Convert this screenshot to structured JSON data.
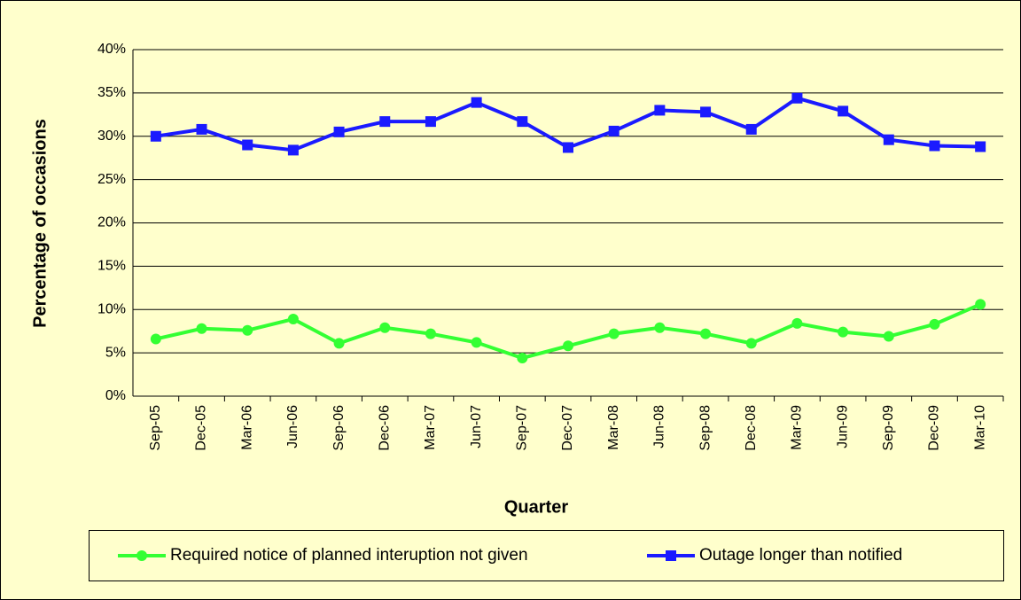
{
  "chart_data": {
    "type": "line",
    "y_label": "Percentage of occasions",
    "x_label": "Quarter",
    "categories": [
      "Sep-05",
      "Dec-05",
      "Mar-06",
      "Jun-06",
      "Sep-06",
      "Dec-06",
      "Mar-07",
      "Jun-07",
      "Sep-07",
      "Dec-07",
      "Mar-08",
      "Jun-08",
      "Sep-08",
      "Dec-08",
      "Mar-09",
      "Jun-09",
      "Sep-09",
      "Dec-09",
      "Mar-10"
    ],
    "series": [
      {
        "name": "Required notice of planned interuption not given",
        "color": "#33ff33",
        "marker": "circle",
        "values": [
          6.6,
          7.8,
          7.6,
          8.9,
          6.1,
          7.9,
          7.2,
          6.2,
          4.4,
          5.8,
          7.2,
          7.9,
          7.2,
          6.1,
          8.4,
          7.4,
          6.9,
          8.3,
          10.6
        ]
      },
      {
        "name": "Outage longer than notified",
        "color": "#1a1aff",
        "marker": "square",
        "values": [
          30.0,
          30.8,
          29.0,
          28.4,
          30.5,
          31.7,
          31.7,
          33.9,
          31.7,
          28.7,
          30.6,
          33.0,
          32.8,
          30.8,
          34.4,
          32.9,
          29.6,
          28.9,
          28.8
        ]
      }
    ],
    "ylim": [
      0,
      40
    ],
    "yticks": [
      {
        "value": 0,
        "label": "0%"
      },
      {
        "value": 5,
        "label": "5%"
      },
      {
        "value": 10,
        "label": "10%"
      },
      {
        "value": 15,
        "label": "15%"
      },
      {
        "value": 20,
        "label": "20%"
      },
      {
        "value": 25,
        "label": "25%"
      },
      {
        "value": 30,
        "label": "30%"
      },
      {
        "value": 35,
        "label": "35%"
      },
      {
        "value": 40,
        "label": "40%"
      }
    ],
    "grid": true,
    "legend": "bottom"
  }
}
